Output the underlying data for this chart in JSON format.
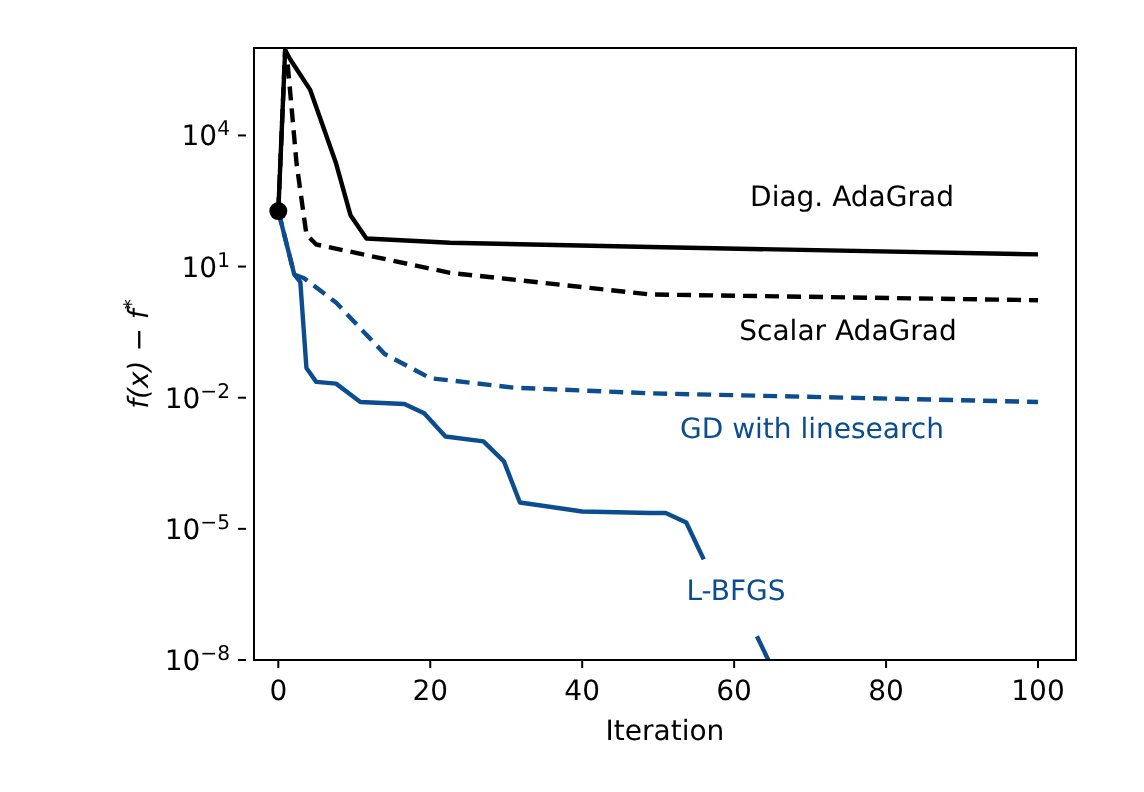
{
  "chart_data": {
    "type": "line",
    "xlabel": "Iteration",
    "ylabel": "f(x) − f$^{*}$",
    "log": "y",
    "marker": "none",
    "xlim": [
      -3.2,
      105
    ],
    "xticks": [
      0,
      20,
      40,
      60,
      80,
      100
    ],
    "ylim": [
      1e-08,
      1000000
    ],
    "yticks": [
      {
        "value": 1e-08,
        "label": "10$^{−8}$"
      },
      {
        "value": 1e-05,
        "label": "10$^{−5}$"
      },
      {
        "value": 0.01,
        "label": "10$^{−2}$"
      },
      {
        "value": 10,
        "label": "10$^{1}$"
      },
      {
        "value": 10000,
        "label": "10$^{4}$"
      }
    ],
    "series": [
      {
        "name": "Diag. AdaGrad",
        "color": "#000000",
        "line_style": "solid",
        "x": [
          0,
          0.9,
          1.6,
          4.2,
          7.6,
          9.5,
          11.6,
          22.6,
          49,
          100
        ],
        "values": [
          186,
          900000,
          540000,
          110000,
          2300,
          150,
          44,
          35,
          28,
          19
        ]
      },
      {
        "name": "Scalar AdaGrad",
        "color": "#000000",
        "line_style": "dashed",
        "x": [
          0,
          0.9,
          1.2,
          2.4,
          3.7,
          5,
          22.6,
          49,
          100
        ],
        "values": [
          186,
          900000,
          500000,
          2300,
          54,
          32,
          7.2,
          2.3,
          1.7
        ]
      },
      {
        "name": "GD with linesearch",
        "color": "#0b4d8f",
        "line_style": "dashed",
        "x": [
          0,
          2.1,
          3.4,
          7.6,
          14,
          20,
          31,
          49,
          100
        ],
        "values": [
          186,
          6.6,
          5.4,
          1.5,
          0.1,
          0.028,
          0.017,
          0.0126,
          0.008
        ]
      },
      {
        "name": "L-BFGS",
        "color": "#0b4d8f",
        "line_style": "solid",
        "x": [
          0,
          2.1,
          2.9,
          3.7,
          5,
          7.6,
          10.8,
          16.6,
          19.2,
          22,
          27,
          29.7,
          31.8,
          40,
          49,
          51,
          53.7,
          56,
          60,
          63,
          64.5
        ],
        "values": [
          186,
          6.6,
          4.4,
          0.048,
          0.023,
          0.021,
          0.008,
          0.0072,
          0.0044,
          0.0013,
          0.001,
          0.00035,
          4e-05,
          2.5e-05,
          2.3e-05,
          2.3e-05,
          1.4e-05,
          2e-06,
          null,
          3.5e-08,
          1e-08
        ]
      },
      {
        "type": "scatter",
        "marker": "circle",
        "color": "#000000",
        "x": [
          0
        ],
        "values": [
          186
        ]
      }
    ]
  }
}
